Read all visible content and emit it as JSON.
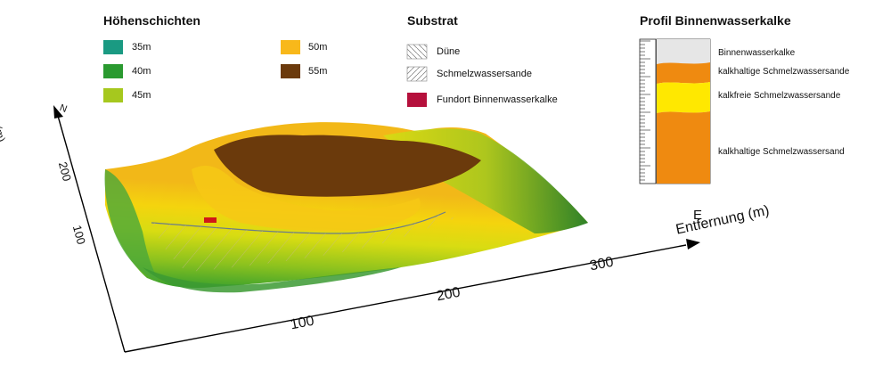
{
  "legend_heights": {
    "title": "Höhenschichten",
    "items": [
      {
        "label": "35m",
        "color": "#1a9a82"
      },
      {
        "label": "40m",
        "color": "#2a9a30"
      },
      {
        "label": "45m",
        "color": "#a6c81e"
      },
      {
        "label": "50m",
        "color": "#f8b81a"
      },
      {
        "label": "55m",
        "color": "#6b3a0c"
      }
    ]
  },
  "legend_substrate": {
    "title": "Substrat",
    "items": [
      {
        "label": "Düne",
        "pattern": "hatch-diagonal-back"
      },
      {
        "label": "Schmelzwassersande",
        "pattern": "hatch-diagonal-forward"
      },
      {
        "label": "Fundort Binnenwasserkalke",
        "color": "#b5103c"
      }
    ]
  },
  "profile": {
    "title": "Profil Binnenwasserkalke",
    "layers": [
      {
        "label": "Binnenwasserkalke",
        "color": "#e6e6e6"
      },
      {
        "label": "kalkhaltige Schmelzwassersande",
        "color": "#ef8a10"
      },
      {
        "label": "kalkfreie Schmelzwassersande",
        "color": "#ffe800"
      },
      {
        "label": "kalkhaltige Schmelzwassersand",
        "color": "#ef8a10"
      }
    ]
  },
  "axes": {
    "y_name": "Entfernung (m)",
    "y_marker": "N",
    "y_ticks": [
      "200",
      "100"
    ],
    "x_name": "Entfernung (m)",
    "x_marker": "E",
    "x_ticks": [
      "100",
      "200",
      "300"
    ]
  },
  "terrain_colors": [
    "#1a9a82",
    "#2a9a30",
    "#a6c81e",
    "#f8b81a",
    "#6b3a0c"
  ]
}
